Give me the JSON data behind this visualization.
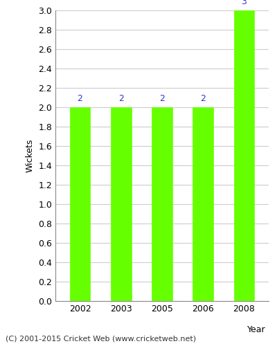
{
  "categories": [
    "2002",
    "2003",
    "2005",
    "2006",
    "2008"
  ],
  "values": [
    2,
    2,
    2,
    2,
    3
  ],
  "bar_color": "#66ff00",
  "label_color": "#3333cc",
  "xlabel": "Year",
  "ylabel": "Wickets",
  "ylim": [
    0.0,
    3.0
  ],
  "ytick_step": 0.2,
  "background_color": "#ffffff",
  "plot_bg_color": "#ffffff",
  "footer": "(C) 2001-2015 Cricket Web (www.cricketweb.net)",
  "label_fontsize": 9,
  "axis_label_fontsize": 9,
  "tick_fontsize": 9,
  "footer_fontsize": 8,
  "bar_width": 0.5
}
